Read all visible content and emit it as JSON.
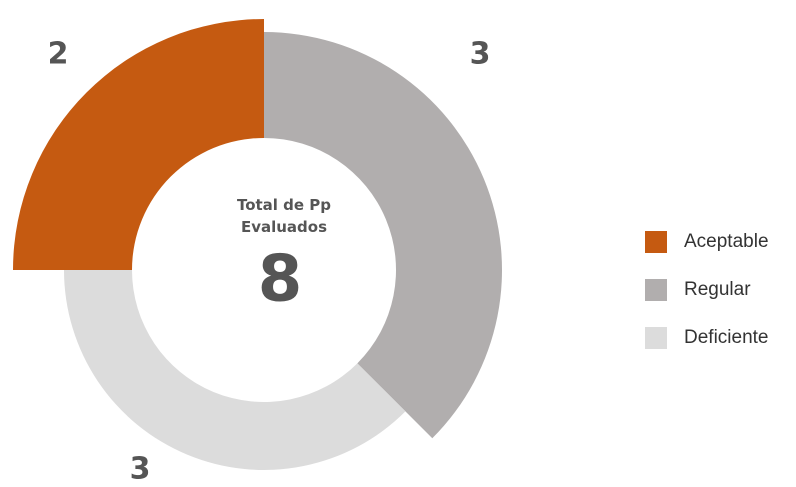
{
  "chart_data": {
    "type": "donut",
    "categories": [
      "Aceptable",
      "Regular",
      "Deficiente"
    ],
    "values": [
      2,
      3,
      3
    ],
    "colors": [
      "#c55a11",
      "#b1aeae",
      "#dcdcdc"
    ],
    "center_label": "Total de Pp Evaluados",
    "total": 8,
    "legend": "right"
  }
}
